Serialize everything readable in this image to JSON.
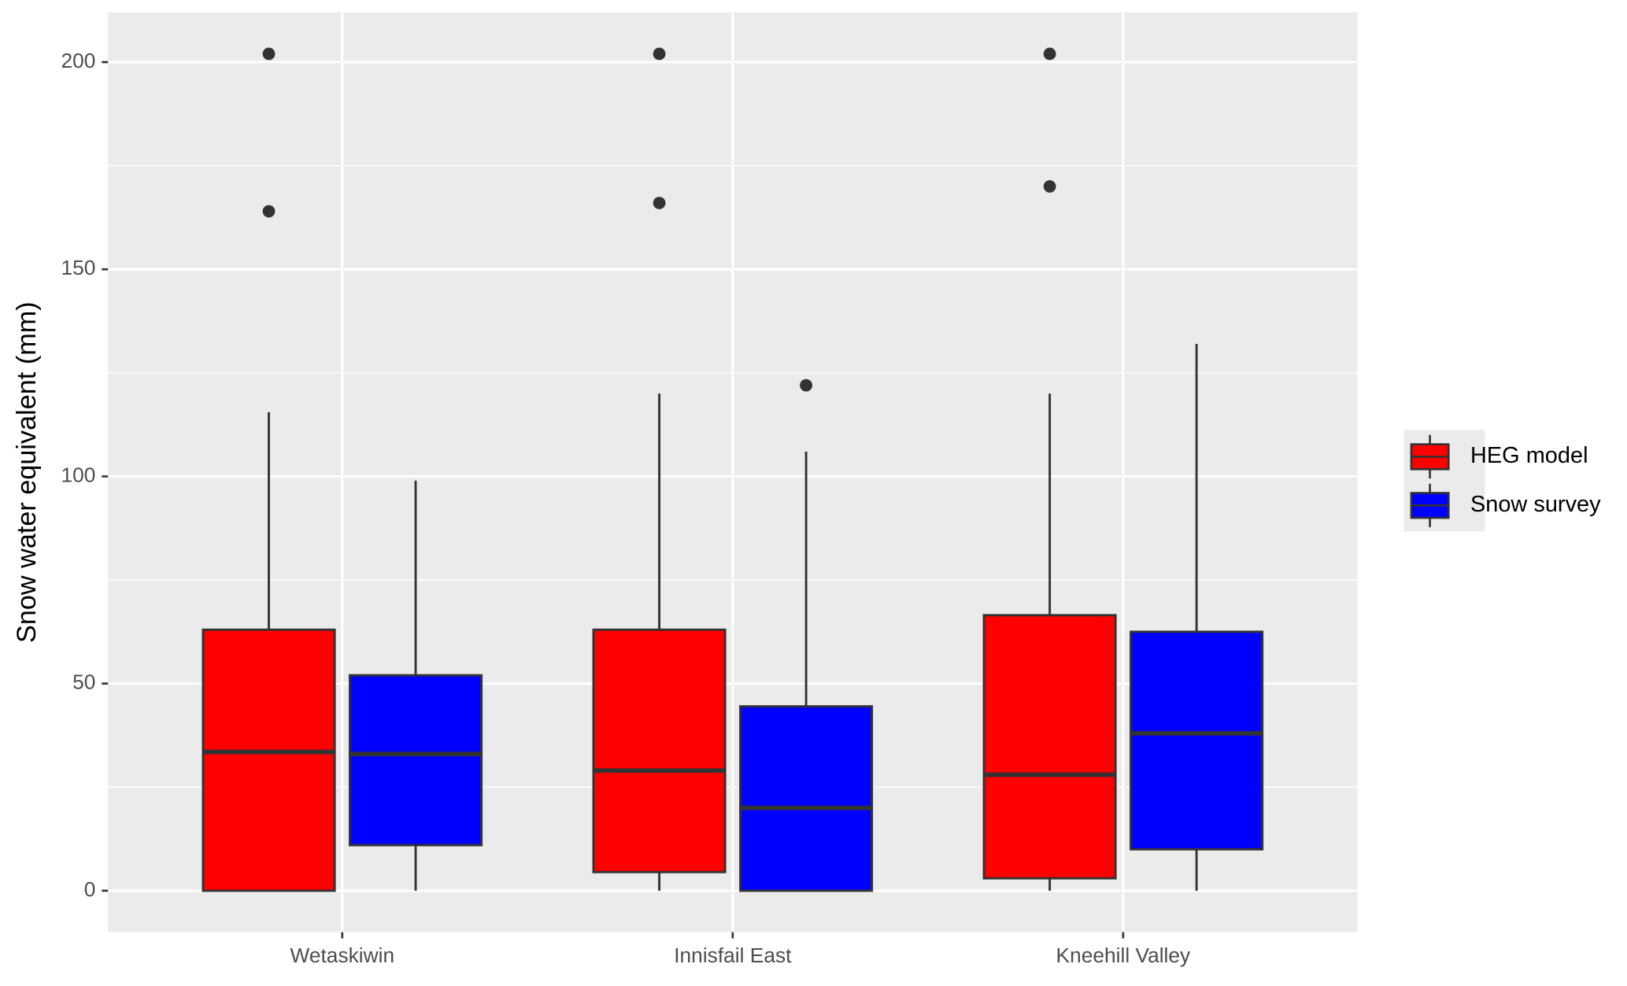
{
  "chart_data": {
    "type": "boxplot",
    "y_label": "Snow water equivalent (mm)",
    "categories": [
      "Wetaskiwin",
      "Innisfail East",
      "Kneehill Valley"
    ],
    "ylim": [
      -10,
      212
    ],
    "yticks": [
      0,
      50,
      100,
      150,
      200
    ],
    "minor_yticks": [
      25,
      75,
      125,
      175
    ],
    "grid": true,
    "legend": "right",
    "series": [
      {
        "name": "HEG model",
        "color": "#ff0000",
        "boxes": [
          {
            "min": 0,
            "q1": 0,
            "median": 33.5,
            "q3": 63,
            "max": 115.5,
            "outliers": [
              164,
              202
            ]
          },
          {
            "min": 0,
            "q1": 4.5,
            "median": 29,
            "q3": 63,
            "max": 120,
            "outliers": [
              166,
              202
            ]
          },
          {
            "min": 0,
            "q1": 3,
            "median": 28,
            "q3": 66.5,
            "max": 120,
            "outliers": [
              170,
              202
            ]
          }
        ]
      },
      {
        "name": "Snow survey",
        "color": "#0000ff",
        "boxes": [
          {
            "min": 0,
            "q1": 11,
            "median": 33,
            "q3": 52,
            "max": 99,
            "outliers": []
          },
          {
            "min": 0,
            "q1": 0,
            "median": 20,
            "q3": 44.5,
            "max": 106,
            "outliers": [
              122
            ]
          },
          {
            "min": 0,
            "q1": 10,
            "median": 38,
            "q3": 62.5,
            "max": 132,
            "outliers": []
          }
        ]
      }
    ]
  }
}
